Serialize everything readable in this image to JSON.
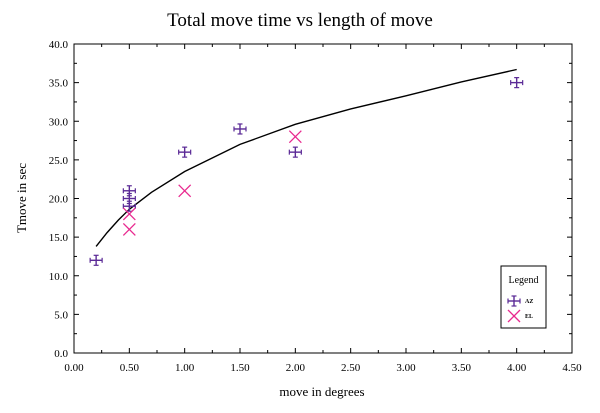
{
  "chart_data": {
    "type": "scatter",
    "title": "Total move time vs length of move",
    "xlabel": "move in degrees",
    "ylabel": "Tmove in sec",
    "xlim": [
      0,
      4.5
    ],
    "ylim": [
      0,
      40
    ],
    "xticks": [
      "0.00",
      "0.50",
      "1.00",
      "1.50",
      "2.00",
      "2.50",
      "3.00",
      "3.50",
      "4.00",
      "4.50"
    ],
    "yticks": [
      "0.0",
      "5.0",
      "10.0",
      "15.0",
      "20.0",
      "25.0",
      "30.0",
      "35.0",
      "40.0"
    ],
    "grid": false,
    "legend": {
      "title": "Legend",
      "position": "bottom-right"
    },
    "series": [
      {
        "name": "AZ",
        "marker": "errorbar-cross",
        "color": "#5b2a96",
        "points": [
          {
            "x": 0.2,
            "y": 12
          },
          {
            "x": 0.5,
            "y": 21
          },
          {
            "x": 0.5,
            "y": 20
          },
          {
            "x": 0.5,
            "y": 19
          },
          {
            "x": 1.0,
            "y": 26
          },
          {
            "x": 1.5,
            "y": 29
          },
          {
            "x": 2.0,
            "y": 26
          },
          {
            "x": 4.0,
            "y": 35
          }
        ]
      },
      {
        "name": "EL",
        "marker": "x",
        "color": "#e8298f",
        "points": [
          {
            "x": 0.5,
            "y": 18
          },
          {
            "x": 0.5,
            "y": 16
          },
          {
            "x": 1.0,
            "y": 21
          },
          {
            "x": 2.0,
            "y": 28
          }
        ]
      }
    ],
    "fit_curve": {
      "color": "#000000",
      "points": [
        {
          "x": 0.2,
          "y": 13.8
        },
        {
          "x": 0.3,
          "y": 15.6
        },
        {
          "x": 0.4,
          "y": 17.2
        },
        {
          "x": 0.5,
          "y": 18.6
        },
        {
          "x": 0.7,
          "y": 20.8
        },
        {
          "x": 1.0,
          "y": 23.5
        },
        {
          "x": 1.5,
          "y": 27.0
        },
        {
          "x": 2.0,
          "y": 29.6
        },
        {
          "x": 2.5,
          "y": 31.6
        },
        {
          "x": 3.0,
          "y": 33.3
        },
        {
          "x": 3.5,
          "y": 35.1
        },
        {
          "x": 4.0,
          "y": 36.7
        }
      ]
    }
  }
}
